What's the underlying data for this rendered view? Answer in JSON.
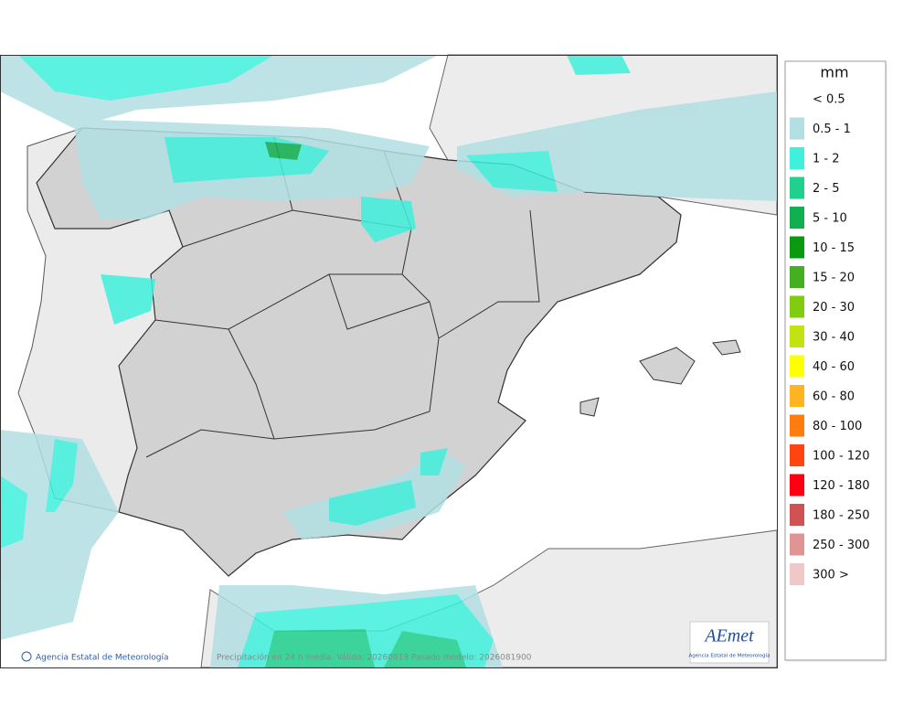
{
  "legend": {
    "title": "mm",
    "items": [
      {
        "label": "< 0.5",
        "color": "#ffffff"
      },
      {
        "label": "0.5 - 1",
        "color": "#b2dfe2"
      },
      {
        "label": "1 - 2",
        "color": "#3ff0dc"
      },
      {
        "label": "2 - 5",
        "color": "#1fd08e"
      },
      {
        "label": "5 - 10",
        "color": "#10b050"
      },
      {
        "label": "10 - 15",
        "color": "#0a9a10"
      },
      {
        "label": "15 - 20",
        "color": "#44b020"
      },
      {
        "label": "20 - 30",
        "color": "#82cc10"
      },
      {
        "label": "30 - 40",
        "color": "#c2e212"
      },
      {
        "label": "40 - 60",
        "color": "#ffff00"
      },
      {
        "label": "60 - 80",
        "color": "#ffb420"
      },
      {
        "label": "80 - 100",
        "color": "#ff7c10"
      },
      {
        "label": "100 - 120",
        "color": "#ff4410"
      },
      {
        "label": "120 - 180",
        "color": "#ff0010"
      },
      {
        "label": "180 - 250",
        "color": "#d05252"
      },
      {
        "label": "250 - 300",
        "color": "#e09494"
      },
      {
        "label": "300 >",
        "color": "#f0c8c8"
      }
    ]
  },
  "footer": {
    "credit": "Agencia Estatal de Meteorología",
    "caption": "Precipitación en 24 h media. Válido: 20260819 Pasado modelo: 2026081900"
  },
  "logo": {
    "text": "AEmet",
    "subtitle": "Agencia Estatal de Meteorología"
  }
}
